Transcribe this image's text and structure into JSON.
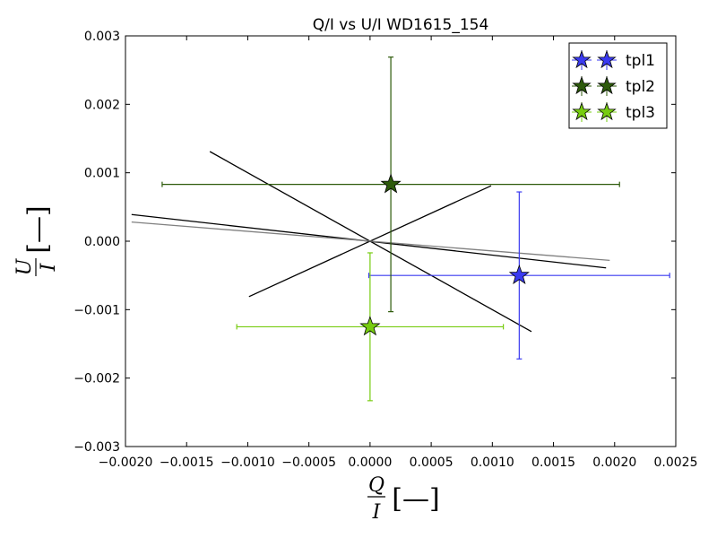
{
  "chart_data": {
    "type": "scatter",
    "title": "Q/I vs U/I WD1615_154",
    "xlabel": {
      "numerator": "Q",
      "denominator": "I",
      "unit": "[—]"
    },
    "ylabel": {
      "numerator": "U",
      "denominator": "I",
      "unit": "[—]"
    },
    "xlim": [
      -0.002,
      0.0025
    ],
    "ylim": [
      -0.003,
      0.003
    ],
    "x_ticks": [
      -0.002,
      -0.0015,
      -0.001,
      -0.0005,
      0.0,
      0.0005,
      0.001,
      0.0015,
      0.002,
      0.0025
    ],
    "x_tick_labels": [
      "−0.0020",
      "−0.0015",
      "−0.0010",
      "−0.0005",
      "0.0000",
      "0.0005",
      "0.0010",
      "0.0015",
      "0.0020",
      "0.0025"
    ],
    "y_ticks": [
      -0.003,
      -0.002,
      -0.001,
      0.0,
      0.001,
      0.002,
      0.003
    ],
    "y_tick_labels": [
      "−0.003",
      "−0.002",
      "−0.001",
      "0.000",
      "0.001",
      "0.002",
      "0.003"
    ],
    "legend_position": "top-right",
    "grid": false,
    "series": [
      {
        "name": "tpl1",
        "color": "#3a3af0",
        "x": 0.00122,
        "y": -0.0005,
        "xerr": [
          0.00123,
          0.00123
        ],
        "yerr": [
          0.00122,
          0.00122
        ]
      },
      {
        "name": "tpl2",
        "color": "#2d5a0a",
        "x": 0.00017,
        "y": 0.00083,
        "xerr": [
          0.00187,
          0.00187
        ],
        "yerr": [
          0.00186,
          0.00186
        ]
      },
      {
        "name": "tpl3",
        "color": "#77cc10",
        "x": 0.0,
        "y": -0.00125,
        "xerr": [
          0.00109,
          0.00109
        ],
        "yerr": [
          0.00108,
          0.00108
        ]
      }
    ],
    "lines": [
      {
        "color": "#000000",
        "points": [
          [
            -0.00131,
            0.00131
          ],
          [
            0.00132,
            -0.00132
          ]
        ]
      },
      {
        "color": "#000000",
        "points": [
          [
            -0.00099,
            -0.00081
          ],
          [
            0.00099,
            0.00081
          ]
        ]
      },
      {
        "color": "#000000",
        "points": [
          [
            -0.00195,
            0.00039
          ],
          [
            0.00193,
            -0.00039
          ]
        ]
      },
      {
        "color": "#808080",
        "points": [
          [
            -0.00195,
            0.00028
          ],
          [
            0.00196,
            -0.00028
          ]
        ]
      }
    ]
  }
}
